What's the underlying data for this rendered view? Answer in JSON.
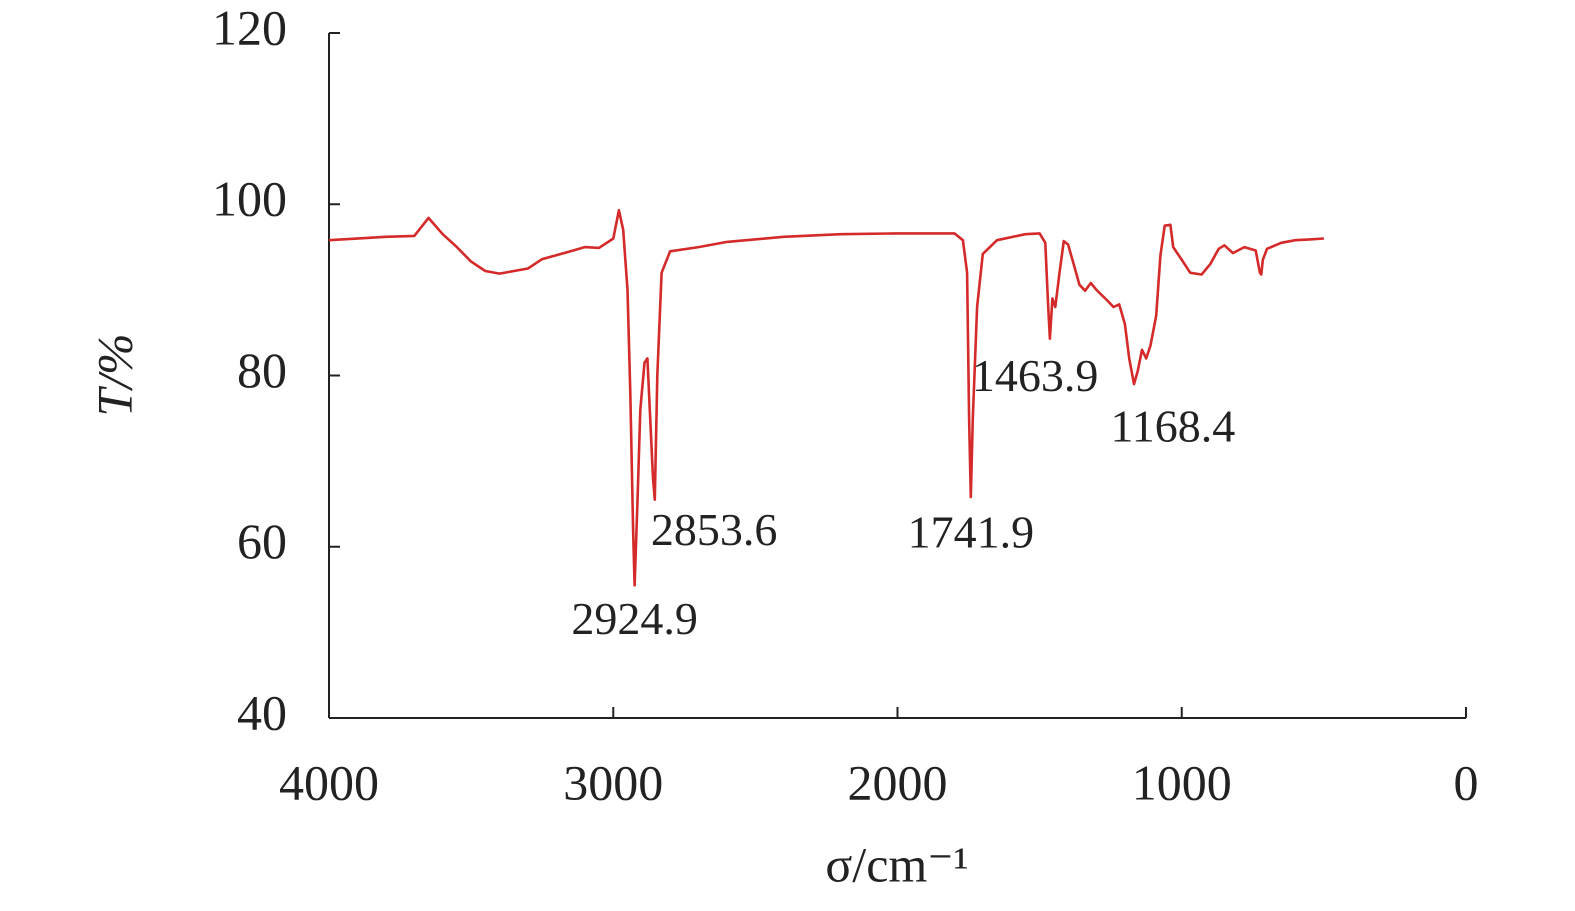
{
  "chart_data": {
    "type": "line",
    "xlabel": "σ/cm⁻¹",
    "ylabel": "T/%",
    "xlim": [
      4000,
      0
    ],
    "ylim": [
      40,
      120
    ],
    "xticks": [
      4000,
      3000,
      2000,
      1000,
      0
    ],
    "yticks": [
      40,
      60,
      80,
      100,
      120
    ],
    "x": [
      4000,
      3800,
      3700,
      3650,
      3600,
      3550,
      3500,
      3450,
      3400,
      3300,
      3250,
      3150,
      3100,
      3050,
      3000,
      2980,
      2965,
      2950,
      2940,
      2930,
      2925,
      2915,
      2905,
      2890,
      2880,
      2870,
      2860,
      2854,
      2845,
      2830,
      2800,
      2700,
      2600,
      2400,
      2200,
      2000,
      1800,
      1770,
      1755,
      1748,
      1742,
      1735,
      1720,
      1700,
      1650,
      1550,
      1500,
      1480,
      1470,
      1464,
      1455,
      1445,
      1430,
      1415,
      1400,
      1380,
      1360,
      1340,
      1320,
      1300,
      1260,
      1240,
      1220,
      1200,
      1185,
      1168,
      1155,
      1140,
      1125,
      1110,
      1090,
      1075,
      1060,
      1040,
      1030,
      1000,
      970,
      930,
      900,
      870,
      850,
      820,
      780,
      740,
      725,
      720,
      715,
      700,
      650,
      600,
      550,
      500
    ],
    "series": [
      {
        "color": "#d42a2a",
        "values": [
          95.8,
          96.2,
          96.3,
          98.4,
          96.5,
          95.0,
          93.3,
          92.2,
          91.9,
          92.5,
          93.6,
          94.5,
          95.0,
          94.9,
          96.0,
          99.3,
          97.0,
          90,
          78,
          62,
          55.5,
          65,
          76,
          81.5,
          82,
          75,
          68,
          65.5,
          80,
          92,
          94.5,
          95.0,
          95.6,
          96.2,
          96.5,
          96.6,
          96.6,
          95.8,
          92,
          75,
          65.8,
          75,
          88,
          94.2,
          95.8,
          96.5,
          96.6,
          95.5,
          88,
          84.3,
          89,
          88,
          92,
          95.7,
          95.3,
          93,
          90.6,
          89.9,
          90.8,
          90,
          88.7,
          88,
          88.3,
          86,
          82,
          79,
          80.5,
          83,
          82,
          83.5,
          87,
          94,
          97.5,
          97.6,
          95,
          93.5,
          92,
          91.8,
          93,
          94.8,
          95.2,
          94.3,
          95.0,
          94.6,
          92,
          91.8,
          93.5,
          94.8,
          95.5,
          95.8,
          95.9,
          96.0
        ]
      }
    ],
    "annotations": [
      {
        "label": "2924.9",
        "x": 2924.9
      },
      {
        "label": "2853.6",
        "x": 2853.6
      },
      {
        "label": "1741.9",
        "x": 1741.9
      },
      {
        "label": "1463.9",
        "x": 1463.9
      },
      {
        "label": "1168.4",
        "x": 1168.4
      }
    ]
  }
}
